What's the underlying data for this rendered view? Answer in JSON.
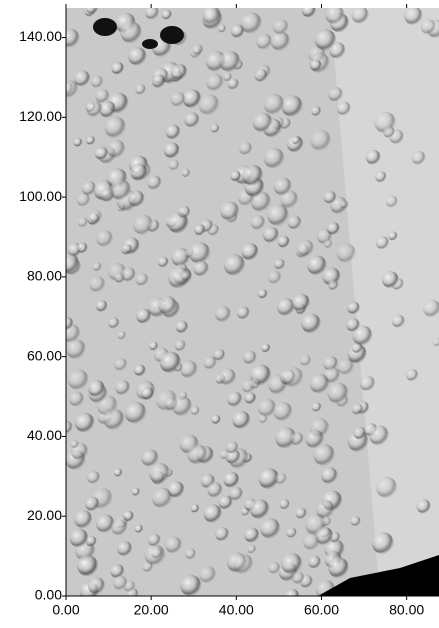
{
  "chart_data": {
    "type": "surface",
    "xlim": [
      0,
      87.6
    ],
    "ylim": [
      0,
      147.4
    ],
    "xticks": [
      {
        "value": 0,
        "label": "0.00"
      },
      {
        "value": 20,
        "label": "20.00"
      },
      {
        "value": 40,
        "label": "40.00"
      },
      {
        "value": 60,
        "label": "60.00"
      },
      {
        "value": 80,
        "label": "80.00"
      }
    ],
    "yticks": [
      {
        "value": 0,
        "label": "0.00"
      },
      {
        "value": 20,
        "label": "20.00"
      },
      {
        "value": 40,
        "label": "40.00"
      },
      {
        "value": 60,
        "label": "60.00"
      },
      {
        "value": 80,
        "label": "80.00"
      },
      {
        "value": 100,
        "label": "100.00"
      },
      {
        "value": 120,
        "label": "120.00"
      },
      {
        "value": 140,
        "label": "140.00"
      }
    ]
  }
}
